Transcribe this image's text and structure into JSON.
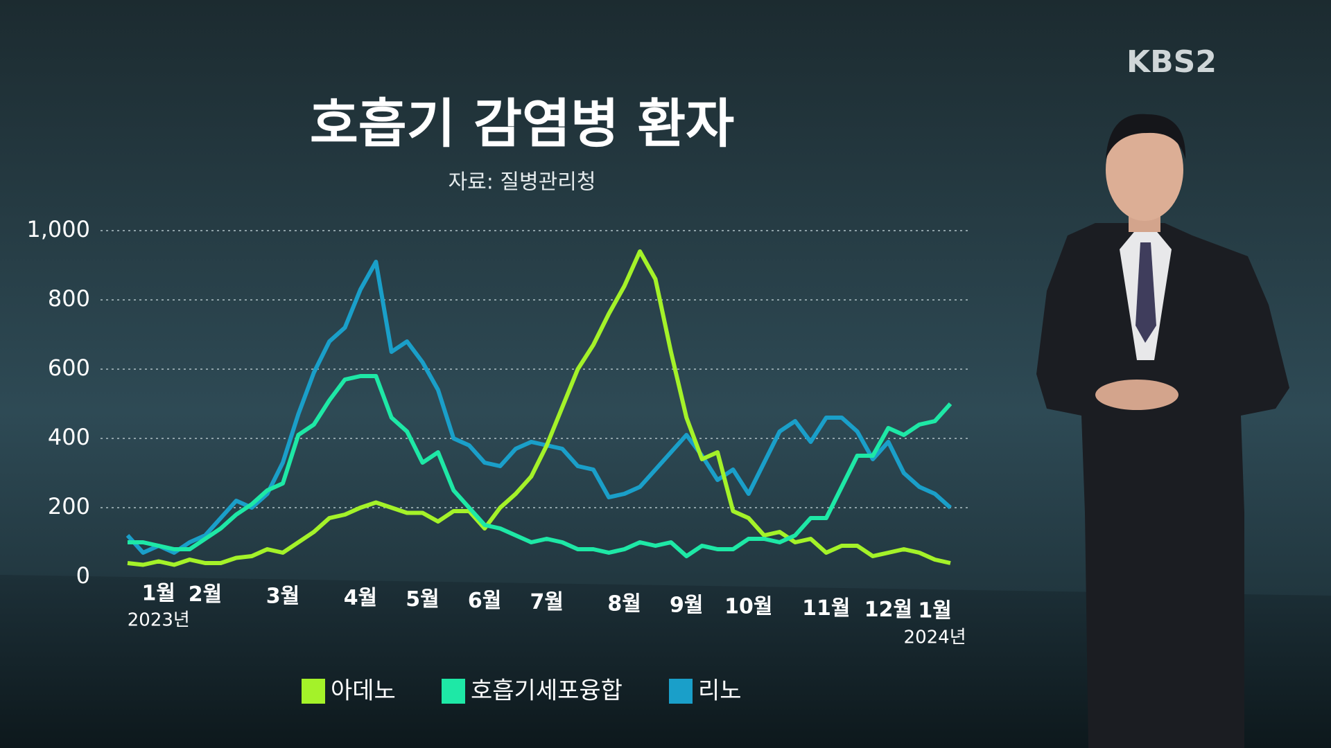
{
  "logo": "KBS2",
  "chart_data": {
    "type": "line",
    "title": "호흡기 감염병 환자",
    "subtitle": "자료: 질병관리청",
    "categories": [
      null,
      null,
      "1월",
      null,
      null,
      "2월",
      null,
      null,
      null,
      null,
      "3월",
      null,
      null,
      null,
      null,
      "4월",
      null,
      null,
      null,
      "5월",
      null,
      null,
      null,
      "6월",
      null,
      null,
      null,
      "7월",
      null,
      null,
      null,
      null,
      "8월",
      null,
      null,
      null,
      "9월",
      null,
      null,
      null,
      "10월",
      null,
      null,
      null,
      null,
      "11월",
      null,
      null,
      null,
      "12월",
      null,
      null,
      "1월",
      null
    ],
    "annotations": [
      "2023년",
      "2024년"
    ],
    "series": [
      {
        "name": "아데노",
        "color": "#a4f229",
        "values": [
          40,
          35,
          45,
          35,
          50,
          40,
          40,
          55,
          60,
          80,
          70,
          100,
          130,
          170,
          180,
          200,
          215,
          200,
          185,
          185,
          160,
          190,
          190,
          140,
          200,
          240,
          290,
          380,
          490,
          600,
          670,
          760,
          840,
          940,
          860,
          650,
          460,
          340,
          360,
          190,
          170,
          120,
          130,
          100,
          110,
          70,
          90,
          90,
          60,
          70,
          80,
          70,
          50,
          40
        ]
      },
      {
        "name": "호흡기세포융합",
        "color": "#1ee8a6",
        "values": [
          100,
          100,
          90,
          80,
          80,
          110,
          140,
          180,
          210,
          250,
          270,
          410,
          440,
          510,
          570,
          580,
          580,
          460,
          420,
          330,
          360,
          250,
          200,
          150,
          140,
          120,
          100,
          110,
          100,
          80,
          80,
          70,
          80,
          100,
          90,
          100,
          60,
          90,
          80,
          80,
          110,
          110,
          100,
          120,
          170,
          170,
          260,
          350,
          350,
          430,
          410,
          440,
          450,
          500
        ]
      },
      {
        "name": "리노",
        "color": "#1a9fc9",
        "values": [
          120,
          70,
          90,
          70,
          100,
          120,
          170,
          220,
          200,
          240,
          330,
          470,
          590,
          680,
          720,
          830,
          910,
          650,
          680,
          620,
          540,
          400,
          380,
          330,
          320,
          370,
          390,
          380,
          370,
          320,
          310,
          230,
          240,
          260,
          310,
          360,
          410,
          350,
          280,
          310,
          240,
          330,
          420,
          450,
          390,
          460,
          460,
          420,
          340,
          390,
          300,
          260,
          240,
          200
        ]
      }
    ],
    "ylim": [
      0,
      1000
    ],
    "yticks": [
      0,
      200,
      400,
      600,
      {
        "value": 800,
        "label": "800"
      },
      {
        "value": 1000,
        "label": "1,000"
      }
    ],
    "grid": true,
    "legend": "bottom"
  }
}
